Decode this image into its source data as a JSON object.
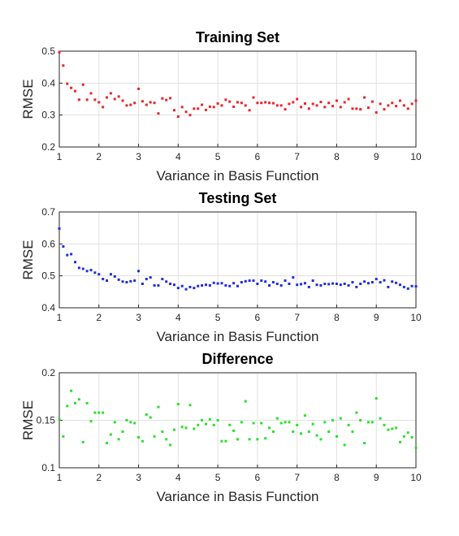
{
  "chart_data": [
    {
      "type": "scatter",
      "title": "Training Set",
      "xlabel": "Variance in Basis Function",
      "ylabel": "RMSE",
      "xlim": [
        1,
        10
      ],
      "ylim": [
        0.2,
        0.5
      ],
      "xticks": [
        1,
        2,
        3,
        4,
        5,
        6,
        7,
        8,
        9,
        10
      ],
      "yticks": [
        0.2,
        0.3,
        0.4,
        0.5
      ],
      "grid": true,
      "color": "#e8262a",
      "series": [
        {
          "x": [
            1.0,
            1.1,
            1.2,
            1.3,
            1.4,
            1.5,
            1.6,
            1.7,
            1.8,
            1.9,
            2.0,
            2.1,
            2.2,
            2.3,
            2.4,
            2.5,
            2.6,
            2.7,
            2.8,
            2.9,
            3.0,
            3.1,
            3.2,
            3.3,
            3.4,
            3.5,
            3.6,
            3.7,
            3.8,
            3.9,
            4.0,
            4.1,
            4.2,
            4.3,
            4.4,
            4.5,
            4.6,
            4.7,
            4.8,
            4.9,
            5.0,
            5.1,
            5.2,
            5.3,
            5.4,
            5.5,
            5.6,
            5.7,
            5.8,
            5.9,
            6.0,
            6.1,
            6.2,
            6.3,
            6.4,
            6.5,
            6.6,
            6.7,
            6.8,
            6.9,
            7.0,
            7.1,
            7.2,
            7.3,
            7.4,
            7.5,
            7.6,
            7.7,
            7.8,
            7.9,
            8.0,
            8.1,
            8.2,
            8.3,
            8.4,
            8.5,
            8.6,
            8.7,
            8.8,
            8.9,
            9.0,
            9.1,
            9.2,
            9.3,
            9.4,
            9.5,
            9.6,
            9.7,
            9.8,
            9.9,
            10.0
          ],
          "y": [
            0.497,
            0.455,
            0.398,
            0.385,
            0.375,
            0.348,
            0.395,
            0.348,
            0.368,
            0.348,
            0.34,
            0.325,
            0.355,
            0.368,
            0.35,
            0.358,
            0.345,
            0.33,
            0.332,
            0.338,
            0.382,
            0.343,
            0.332,
            0.34,
            0.338,
            0.305,
            0.352,
            0.347,
            0.353,
            0.315,
            0.295,
            0.325,
            0.31,
            0.3,
            0.32,
            0.32,
            0.332,
            0.316,
            0.326,
            0.325,
            0.336,
            0.33,
            0.348,
            0.342,
            0.326,
            0.34,
            0.338,
            0.33,
            0.315,
            0.355,
            0.338,
            0.338,
            0.34,
            0.338,
            0.337,
            0.33,
            0.33,
            0.318,
            0.335,
            0.34,
            0.35,
            0.325,
            0.336,
            0.32,
            0.335,
            0.33,
            0.341,
            0.325,
            0.338,
            0.328,
            0.345,
            0.325,
            0.34,
            0.35,
            0.32,
            0.32,
            0.318,
            0.355,
            0.323,
            0.342,
            0.308,
            0.335,
            0.318,
            0.33,
            0.338,
            0.328,
            0.345,
            0.33,
            0.32,
            0.335,
            0.345
          ]
        }
      ]
    },
    {
      "type": "scatter",
      "title": "Testing Set",
      "xlabel": "Variance in Basis Function",
      "ylabel": "RMSE",
      "xlim": [
        1,
        10
      ],
      "ylim": [
        0.4,
        0.7
      ],
      "xticks": [
        1,
        2,
        3,
        4,
        5,
        6,
        7,
        8,
        9,
        10
      ],
      "yticks": [
        0.4,
        0.5,
        0.6,
        0.7
      ],
      "grid": true,
      "color": "#1f2ee0",
      "series": [
        {
          "x": [
            1.0,
            1.1,
            1.2,
            1.3,
            1.4,
            1.5,
            1.6,
            1.7,
            1.8,
            1.9,
            2.0,
            2.1,
            2.2,
            2.3,
            2.4,
            2.5,
            2.6,
            2.7,
            2.8,
            2.9,
            3.0,
            3.1,
            3.2,
            3.3,
            3.4,
            3.5,
            3.6,
            3.7,
            3.8,
            3.9,
            4.0,
            4.1,
            4.2,
            4.3,
            4.4,
            4.5,
            4.6,
            4.7,
            4.8,
            4.9,
            5.0,
            5.1,
            5.2,
            5.3,
            5.4,
            5.5,
            5.6,
            5.7,
            5.8,
            5.9,
            6.0,
            6.1,
            6.2,
            6.3,
            6.4,
            6.5,
            6.6,
            6.7,
            6.8,
            6.9,
            7.0,
            7.1,
            7.2,
            7.3,
            7.4,
            7.5,
            7.6,
            7.7,
            7.8,
            7.9,
            8.0,
            8.1,
            8.2,
            8.3,
            8.4,
            8.5,
            8.6,
            8.7,
            8.8,
            8.9,
            9.0,
            9.1,
            9.2,
            9.3,
            9.4,
            9.5,
            9.6,
            9.7,
            9.8,
            9.9,
            10.0
          ],
          "y": [
            0.648,
            0.592,
            0.565,
            0.568,
            0.543,
            0.525,
            0.522,
            0.515,
            0.518,
            0.51,
            0.505,
            0.49,
            0.485,
            0.505,
            0.498,
            0.488,
            0.482,
            0.48,
            0.483,
            0.485,
            0.515,
            0.475,
            0.49,
            0.495,
            0.47,
            0.47,
            0.49,
            0.482,
            0.475,
            0.472,
            0.462,
            0.468,
            0.458,
            0.465,
            0.462,
            0.468,
            0.47,
            0.472,
            0.47,
            0.478,
            0.476,
            0.477,
            0.47,
            0.468,
            0.477,
            0.468,
            0.48,
            0.483,
            0.485,
            0.485,
            0.475,
            0.485,
            0.482,
            0.47,
            0.48,
            0.475,
            0.47,
            0.485,
            0.475,
            0.495,
            0.472,
            0.474,
            0.477,
            0.465,
            0.485,
            0.472,
            0.47,
            0.475,
            0.474,
            0.476,
            0.475,
            0.472,
            0.475,
            0.47,
            0.48,
            0.465,
            0.475,
            0.482,
            0.477,
            0.48,
            0.49,
            0.48,
            0.486,
            0.465,
            0.482,
            0.478,
            0.472,
            0.465,
            0.46,
            0.468,
            0.467
          ]
        }
      ]
    },
    {
      "type": "scatter",
      "title": "Difference",
      "xlabel": "Variance in Basis Function",
      "ylabel": "RMSE",
      "xlim": [
        1,
        10
      ],
      "ylim": [
        0.1,
        0.2
      ],
      "xticks": [
        1,
        2,
        3,
        4,
        5,
        6,
        7,
        8,
        9,
        10
      ],
      "yticks": [
        0.1,
        0.15,
        0.2
      ],
      "grid": true,
      "color": "#2be02b",
      "series": [
        {
          "x": [
            1.0,
            1.1,
            1.2,
            1.3,
            1.4,
            1.5,
            1.6,
            1.7,
            1.8,
            1.9,
            2.0,
            2.1,
            2.2,
            2.3,
            2.4,
            2.5,
            2.6,
            2.7,
            2.8,
            2.9,
            3.0,
            3.1,
            3.2,
            3.3,
            3.4,
            3.5,
            3.6,
            3.7,
            3.8,
            3.9,
            4.0,
            4.1,
            4.2,
            4.3,
            4.4,
            4.5,
            4.6,
            4.7,
            4.8,
            4.9,
            5.0,
            5.1,
            5.2,
            5.3,
            5.4,
            5.5,
            5.6,
            5.7,
            5.8,
            5.9,
            6.0,
            6.1,
            6.2,
            6.3,
            6.4,
            6.5,
            6.6,
            6.7,
            6.8,
            6.9,
            7.0,
            7.1,
            7.2,
            7.3,
            7.4,
            7.5,
            7.6,
            7.7,
            7.8,
            7.9,
            8.0,
            8.1,
            8.2,
            8.3,
            8.4,
            8.5,
            8.6,
            8.7,
            8.8,
            8.9,
            9.0,
            9.1,
            9.2,
            9.3,
            9.4,
            9.5,
            9.6,
            9.7,
            9.8,
            9.9,
            10.0
          ],
          "y": [
            0.151,
            0.133,
            0.165,
            0.181,
            0.168,
            0.172,
            0.127,
            0.168,
            0.149,
            0.158,
            0.158,
            0.158,
            0.126,
            0.135,
            0.148,
            0.13,
            0.138,
            0.15,
            0.148,
            0.147,
            0.132,
            0.128,
            0.156,
            0.153,
            0.133,
            0.164,
            0.138,
            0.13,
            0.124,
            0.14,
            0.167,
            0.143,
            0.142,
            0.166,
            0.141,
            0.145,
            0.15,
            0.146,
            0.151,
            0.145,
            0.15,
            0.128,
            0.128,
            0.145,
            0.139,
            0.13,
            0.148,
            0.17,
            0.13,
            0.147,
            0.13,
            0.147,
            0.131,
            0.142,
            0.138,
            0.152,
            0.147,
            0.148,
            0.148,
            0.138,
            0.145,
            0.136,
            0.155,
            0.138,
            0.146,
            0.134,
            0.13,
            0.148,
            0.138,
            0.15,
            0.133,
            0.152,
            0.124,
            0.145,
            0.138,
            0.158,
            0.15,
            0.126,
            0.148,
            0.148,
            0.173,
            0.152,
            0.145,
            0.14,
            0.141,
            0.142,
            0.127,
            0.133,
            0.137,
            0.132,
            0.121
          ]
        }
      ]
    }
  ]
}
